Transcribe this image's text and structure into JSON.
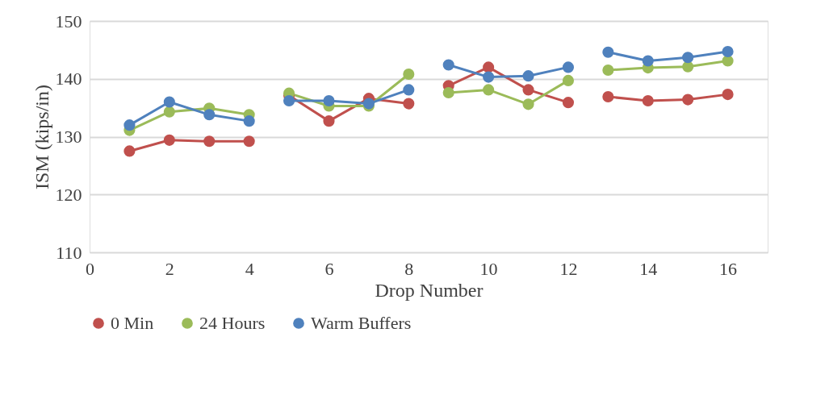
{
  "chart_data": {
    "type": "line",
    "xlabel": "Drop Number",
    "ylabel": "ISM (kips/in)",
    "x": [
      1,
      2,
      3,
      4,
      4.5,
      5,
      6,
      7,
      8,
      8.5,
      9,
      10,
      11,
      12,
      12.5,
      13,
      14,
      15,
      16
    ],
    "series": [
      {
        "name": "0 Min",
        "color": "#c0504d",
        "values": [
          127.5,
          129.4,
          129.2,
          129.2,
          null,
          137.1,
          132.7,
          136.6,
          135.7,
          null,
          138.8,
          142.0,
          138.1,
          135.9,
          null,
          136.9,
          136.2,
          136.4,
          137.3
        ]
      },
      {
        "name": "24 Hours",
        "color": "#9bbb59",
        "values": [
          131.1,
          134.3,
          134.9,
          133.8,
          null,
          137.5,
          135.3,
          135.3,
          140.8,
          null,
          137.6,
          138.1,
          135.6,
          139.7,
          null,
          141.5,
          141.9,
          142.1,
          143.1
        ]
      },
      {
        "name": "Warm Buffers",
        "color": "#4f81bd",
        "values": [
          132.0,
          136.0,
          133.8,
          132.7,
          null,
          136.2,
          136.2,
          135.7,
          138.1,
          null,
          142.4,
          140.3,
          140.5,
          142.0,
          null,
          144.6,
          143.1,
          143.7,
          144.7
        ]
      }
    ],
    "xlim": [
      0,
      17
    ],
    "xticks": [
      0,
      2,
      4,
      6,
      8,
      10,
      12,
      14,
      16
    ],
    "ylim": [
      110,
      150
    ],
    "yticks": [
      110,
      120,
      130,
      140,
      150
    ],
    "grid": "y",
    "legend": "bottom",
    "marker": "circle",
    "line_style": "solid"
  }
}
